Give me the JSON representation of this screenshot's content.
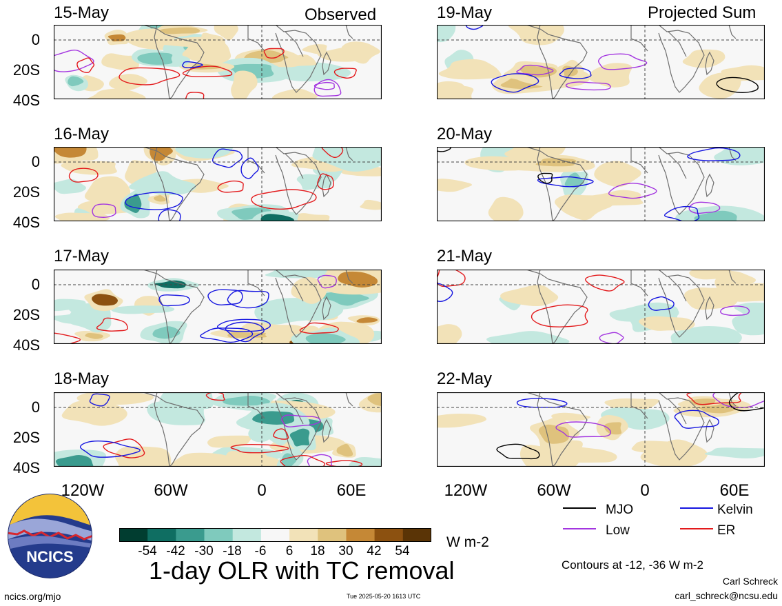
{
  "headers": {
    "left": "Observed",
    "right": "Projected Sum"
  },
  "panels": [
    {
      "date": "15-May",
      "col": 0,
      "row": 0
    },
    {
      "date": "16-May",
      "col": 0,
      "row": 1
    },
    {
      "date": "17-May",
      "col": 0,
      "row": 2
    },
    {
      "date": "18-May",
      "col": 0,
      "row": 3
    },
    {
      "date": "19-May",
      "col": 1,
      "row": 0
    },
    {
      "date": "20-May",
      "col": 1,
      "row": 1
    },
    {
      "date": "21-May",
      "col": 1,
      "row": 2
    },
    {
      "date": "22-May",
      "col": 1,
      "row": 3
    }
  ],
  "lat_labels": [
    "0",
    "20S",
    "40S"
  ],
  "lon_labels": [
    "120W",
    "60W",
    "0",
    "60E"
  ],
  "legend": {
    "mjo": {
      "label": "MJO",
      "color": "#000000"
    },
    "kelvin": {
      "label": "Kelvin",
      "color": "#1515e0"
    },
    "low": {
      "label": "Low",
      "color": "#a335e0"
    },
    "er": {
      "label": "ER",
      "color": "#e31a1c"
    }
  },
  "colorbar": {
    "colors": [
      "#013d30",
      "#0f6e62",
      "#3a9b8e",
      "#7fcabd",
      "#c3e8df",
      "#f7f7f7",
      "#f2e2b8",
      "#dfc27d",
      "#c58836",
      "#8c5110",
      "#5a3406"
    ],
    "labels": [
      "-54",
      "-42",
      "-30",
      "-18",
      "-6",
      "6",
      "18",
      "30",
      "42",
      "54"
    ],
    "units": "W m-2"
  },
  "title": "1-day OLR with TC removal",
  "contours_note": "Contours at -12, -36 W m-2",
  "author": "Carl Schreck",
  "email": "carl_schreck@ncsu.edu",
  "site": "ncics.org/mjo",
  "timestamp": "Tue 2025-05-20 1613 UTC",
  "logo_text": "NCICS"
}
